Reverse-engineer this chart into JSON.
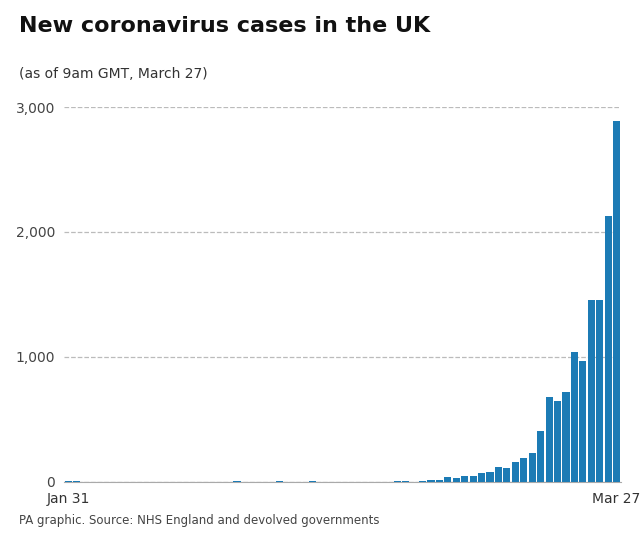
{
  "title": "New coronavirus cases in the UK",
  "subtitle": "(as of 9am GMT, March 27)",
  "source": "PA graphic. Source: NHS England and devolved governments",
  "bar_color": "#1c7bb5",
  "background_color": "#ffffff",
  "ylim": [
    0,
    3000
  ],
  "yticks": [
    0,
    1000,
    2000,
    3000
  ],
  "xlabel_left": "Jan 31",
  "xlabel_right": "Mar 27",
  "values": [
    2,
    1,
    0,
    0,
    0,
    0,
    0,
    0,
    0,
    0,
    0,
    0,
    0,
    0,
    0,
    0,
    0,
    0,
    0,
    0,
    1,
    0,
    0,
    0,
    0,
    3,
    0,
    0,
    0,
    4,
    0,
    0,
    0,
    0,
    0,
    0,
    0,
    0,
    0,
    4,
    8,
    0,
    5,
    9,
    14,
    35,
    29,
    48,
    45,
    69,
    77,
    115,
    105,
    159,
    185,
    225,
    407,
    676,
    643,
    714,
    1035,
    967,
    1452,
    1452,
    2129,
    2885
  ]
}
